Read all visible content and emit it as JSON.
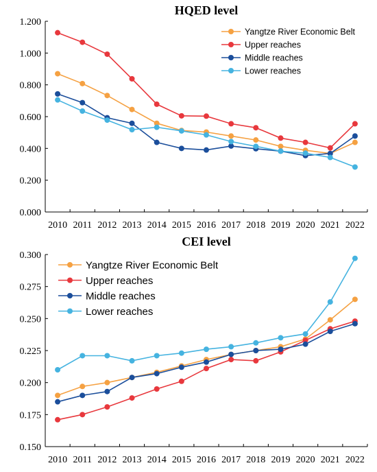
{
  "chart_data": [
    {
      "type": "line",
      "title": "HQED level",
      "xlabel": "",
      "ylabel": "",
      "categories": [
        "2010",
        "2011",
        "2012",
        "2013",
        "2014",
        "2015",
        "2016",
        "2017",
        "2018",
        "2019",
        "2020",
        "2021",
        "2022"
      ],
      "ylim": [
        0,
        1.2
      ],
      "yticks": [
        "0.000",
        "0.200",
        "0.400",
        "0.600",
        "0.800",
        "1.000",
        "1.200"
      ],
      "grid": false,
      "legend_position": "top-right",
      "series": [
        {
          "name": "Yangtze River Economic Belt",
          "color": "#F5A142",
          "values": [
            0.87,
            0.808,
            0.733,
            0.645,
            0.558,
            0.513,
            0.503,
            0.478,
            0.453,
            0.413,
            0.388,
            0.368,
            0.438
          ]
        },
        {
          "name": "Upper reaches",
          "color": "#E8383D",
          "values": [
            1.128,
            1.068,
            0.993,
            0.838,
            0.678,
            0.605,
            0.603,
            0.555,
            0.53,
            0.465,
            0.438,
            0.403,
            0.555
          ]
        },
        {
          "name": "Middle reaches",
          "color": "#1B4E9B",
          "values": [
            0.743,
            0.688,
            0.593,
            0.558,
            0.438,
            0.4,
            0.39,
            0.415,
            0.398,
            0.383,
            0.355,
            0.368,
            0.478
          ]
        },
        {
          "name": "Lower reaches",
          "color": "#45B3E0",
          "values": [
            0.705,
            0.635,
            0.578,
            0.518,
            0.533,
            0.51,
            0.485,
            0.443,
            0.413,
            0.383,
            0.37,
            0.343,
            0.283
          ]
        }
      ]
    },
    {
      "type": "line",
      "title": "CEI level",
      "xlabel": "",
      "ylabel": "",
      "categories": [
        "2010",
        "2011",
        "2012",
        "2013",
        "2014",
        "2015",
        "2016",
        "2017",
        "2018",
        "2019",
        "2020",
        "2021",
        "2022"
      ],
      "ylim": [
        0.15,
        0.3
      ],
      "yticks": [
        "0.150",
        "0.175",
        "0.200",
        "0.225",
        "0.250",
        "0.275",
        "0.300"
      ],
      "grid": false,
      "legend_position": "top-left",
      "series": [
        {
          "name": "Yangtze River Economic Belt",
          "color": "#F5A142",
          "values": [
            0.19,
            0.197,
            0.2,
            0.204,
            0.208,
            0.213,
            0.218,
            0.222,
            0.225,
            0.228,
            0.234,
            0.249,
            0.265
          ]
        },
        {
          "name": "Upper reaches",
          "color": "#E8383D",
          "values": [
            0.171,
            0.175,
            0.181,
            0.188,
            0.195,
            0.201,
            0.211,
            0.218,
            0.217,
            0.224,
            0.233,
            0.242,
            0.248
          ]
        },
        {
          "name": "Middle reaches",
          "color": "#1B4E9B",
          "values": [
            0.185,
            0.19,
            0.193,
            0.204,
            0.207,
            0.212,
            0.216,
            0.222,
            0.225,
            0.226,
            0.23,
            0.24,
            0.246
          ]
        },
        {
          "name": "Lower reaches",
          "color": "#45B3E0",
          "values": [
            0.21,
            0.221,
            0.221,
            0.217,
            0.221,
            0.223,
            0.226,
            0.228,
            0.231,
            0.235,
            0.238,
            0.263,
            0.297
          ]
        }
      ]
    }
  ]
}
